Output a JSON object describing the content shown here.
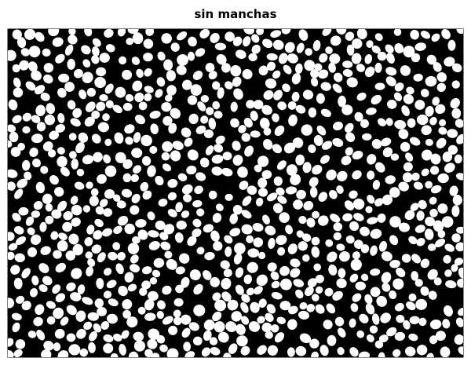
{
  "title": "sin manchas"
}
